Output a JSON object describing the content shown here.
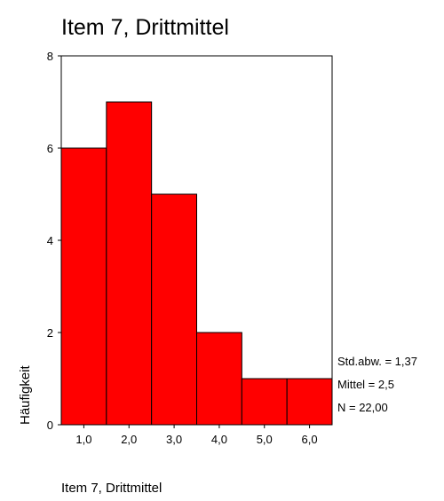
{
  "chart_data": {
    "type": "bar",
    "title": "Item 7, Drittmittel",
    "xlabel": "Item 7, Drittmittel",
    "ylabel": "Häufigkeit",
    "categories": [
      "1,0",
      "2,0",
      "3,0",
      "4,0",
      "5,0",
      "6,0"
    ],
    "values": [
      6,
      7,
      5,
      2,
      1,
      1
    ],
    "ylim": [
      0,
      8
    ],
    "yticks": [
      "0",
      "2",
      "4",
      "6",
      "8"
    ],
    "grid": false,
    "bar_color": "#ff0000",
    "stats": [
      "Std.abw. = 1,37",
      "Mittel = 2,5",
      "N = 22,00"
    ]
  }
}
